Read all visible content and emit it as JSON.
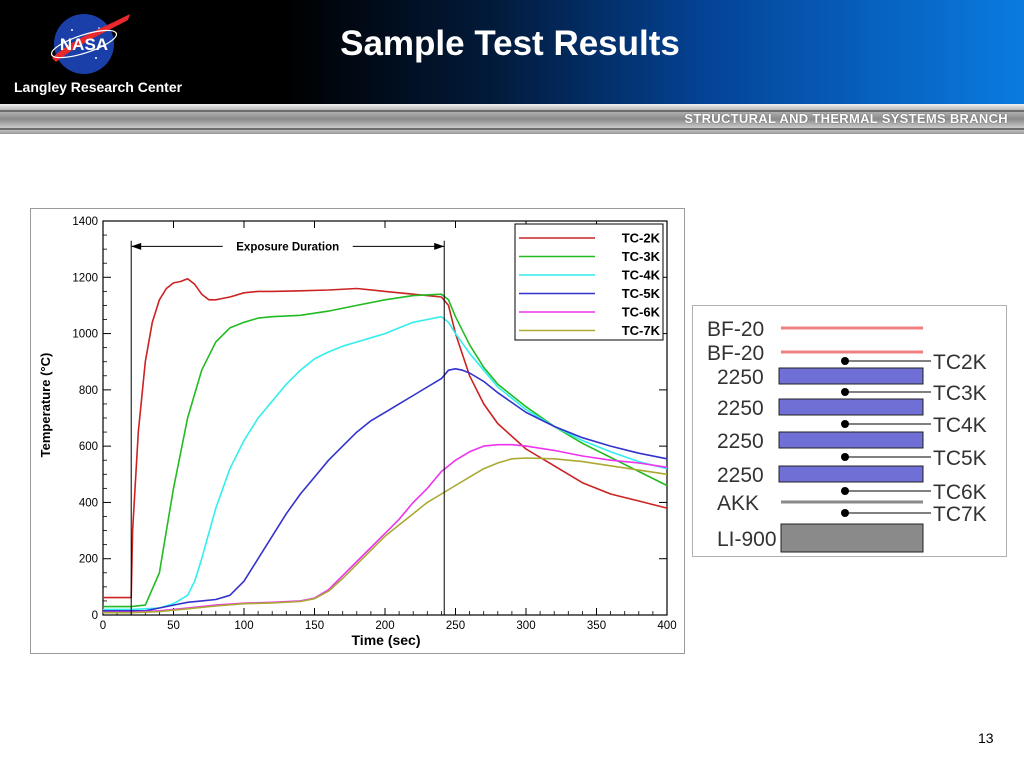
{
  "header": {
    "logo_text": "NASA",
    "center_name": "Langley Research Center",
    "title": "Sample Test Results",
    "branch": "STRUCTURAL AND THERMAL SYSTEMS BRANCH"
  },
  "colors": {
    "TC-2K": "#cc2222",
    "TC-3K": "#22bb22",
    "TC-4K": "#33eeee",
    "TC-5K": "#3333cc",
    "TC-6K": "#ee33ee",
    "TC-7K": "#aaaa33"
  },
  "chart_data": {
    "type": "line",
    "title": "",
    "xlabel": "Time (sec)",
    "ylabel": "Temperature (°C)",
    "xlim": [
      0,
      400
    ],
    "ylim": [
      0,
      1400
    ],
    "xticks": [
      0,
      50,
      100,
      150,
      200,
      250,
      300,
      350,
      400
    ],
    "yticks": [
      0,
      200,
      400,
      600,
      800,
      1000,
      1200,
      1400
    ],
    "grid": false,
    "legend": "top-right",
    "annotation": {
      "text": "Exposure Duration",
      "start": 20,
      "end": 242,
      "y": 1310
    },
    "series": [
      {
        "name": "TC-2K",
        "x": [
          0,
          20,
          21,
          25,
          30,
          35,
          40,
          45,
          50,
          55,
          60,
          65,
          70,
          75,
          80,
          85,
          90,
          100,
          110,
          120,
          140,
          160,
          180,
          200,
          220,
          240,
          245,
          250,
          260,
          270,
          280,
          300,
          320,
          340,
          360,
          380,
          400
        ],
        "y": [
          62,
          62,
          300,
          650,
          900,
          1040,
          1120,
          1160,
          1180,
          1185,
          1195,
          1175,
          1140,
          1120,
          1120,
          1125,
          1130,
          1145,
          1150,
          1150,
          1152,
          1155,
          1160,
          1150,
          1140,
          1130,
          1100,
          1000,
          850,
          750,
          680,
          590,
          530,
          470,
          430,
          405,
          380
        ]
      },
      {
        "name": "TC-3K",
        "x": [
          0,
          20,
          30,
          40,
          45,
          50,
          60,
          70,
          80,
          90,
          100,
          110,
          120,
          140,
          160,
          180,
          200,
          220,
          240,
          245,
          250,
          260,
          270,
          280,
          300,
          320,
          340,
          360,
          380,
          400
        ],
        "y": [
          30,
          30,
          35,
          150,
          300,
          450,
          700,
          870,
          970,
          1020,
          1040,
          1055,
          1060,
          1065,
          1080,
          1100,
          1120,
          1135,
          1140,
          1120,
          1060,
          960,
          880,
          820,
          740,
          670,
          610,
          560,
          510,
          460
        ]
      },
      {
        "name": "TC-4K",
        "x": [
          0,
          20,
          40,
          50,
          60,
          65,
          70,
          80,
          90,
          100,
          110,
          120,
          130,
          140,
          150,
          160,
          170,
          180,
          190,
          200,
          210,
          220,
          230,
          240,
          245,
          250,
          260,
          270,
          280,
          300,
          320,
          340,
          360,
          380,
          400
        ],
        "y": [
          20,
          20,
          25,
          40,
          70,
          120,
          200,
          380,
          520,
          620,
          700,
          760,
          820,
          870,
          910,
          935,
          955,
          970,
          985,
          1000,
          1020,
          1040,
          1050,
          1060,
          1040,
          1000,
          930,
          870,
          810,
          730,
          670,
          620,
          580,
          545,
          520
        ]
      },
      {
        "name": "TC-5K",
        "x": [
          0,
          30,
          40,
          50,
          60,
          70,
          80,
          90,
          100,
          110,
          120,
          130,
          140,
          150,
          160,
          170,
          180,
          190,
          200,
          210,
          220,
          230,
          240,
          245,
          250,
          255,
          260,
          270,
          280,
          300,
          320,
          340,
          360,
          380,
          400
        ],
        "y": [
          15,
          15,
          25,
          35,
          45,
          50,
          55,
          70,
          120,
          200,
          280,
          360,
          430,
          490,
          550,
          600,
          650,
          690,
          720,
          750,
          780,
          810,
          840,
          870,
          875,
          870,
          860,
          830,
          790,
          720,
          670,
          630,
          600,
          575,
          555
        ]
      },
      {
        "name": "TC-6K",
        "x": [
          0,
          20,
          40,
          60,
          80,
          100,
          120,
          140,
          150,
          160,
          170,
          180,
          190,
          200,
          210,
          220,
          230,
          240,
          250,
          260,
          270,
          280,
          290,
          300,
          320,
          340,
          360,
          380,
          400
        ],
        "y": [
          10,
          10,
          15,
          25,
          35,
          42,
          45,
          50,
          60,
          90,
          140,
          190,
          240,
          290,
          340,
          400,
          450,
          510,
          550,
          580,
          600,
          605,
          605,
          600,
          585,
          565,
          550,
          540,
          525
        ]
      },
      {
        "name": "TC-7K",
        "x": [
          0,
          20,
          40,
          60,
          80,
          100,
          120,
          140,
          150,
          160,
          170,
          180,
          190,
          200,
          210,
          220,
          230,
          240,
          250,
          260,
          270,
          280,
          290,
          300,
          320,
          340,
          360,
          380,
          400
        ],
        "y": [
          8,
          8,
          12,
          22,
          32,
          40,
          43,
          48,
          58,
          85,
          130,
          180,
          230,
          280,
          320,
          360,
          400,
          430,
          460,
          490,
          520,
          540,
          555,
          558,
          555,
          545,
          530,
          515,
          500
        ]
      }
    ]
  },
  "diagram": {
    "layers": [
      {
        "label": "BF-20",
        "kind": "line-red",
        "tc": null
      },
      {
        "label": "BF-20",
        "kind": "line-red",
        "tc": "TC2K"
      },
      {
        "label": "2250",
        "kind": "bar-blue",
        "tc": "TC3K"
      },
      {
        "label": "2250",
        "kind": "bar-blue",
        "tc": "TC4K"
      },
      {
        "label": "2250",
        "kind": "bar-blue",
        "tc": "TC5K"
      },
      {
        "label": "2250",
        "kind": "bar-blue",
        "tc": "TC6K"
      },
      {
        "label": "AKK",
        "kind": "line-gray",
        "tc": "TC7K"
      },
      {
        "label": "LI-900",
        "kind": "block-gray",
        "tc": null
      }
    ],
    "colors": {
      "red_line": "#f08080",
      "blue_bar": "#6f6fd6",
      "gray_line": "#8a8a8a",
      "gray_block": "#8a8a8a"
    }
  },
  "page_number": "13"
}
